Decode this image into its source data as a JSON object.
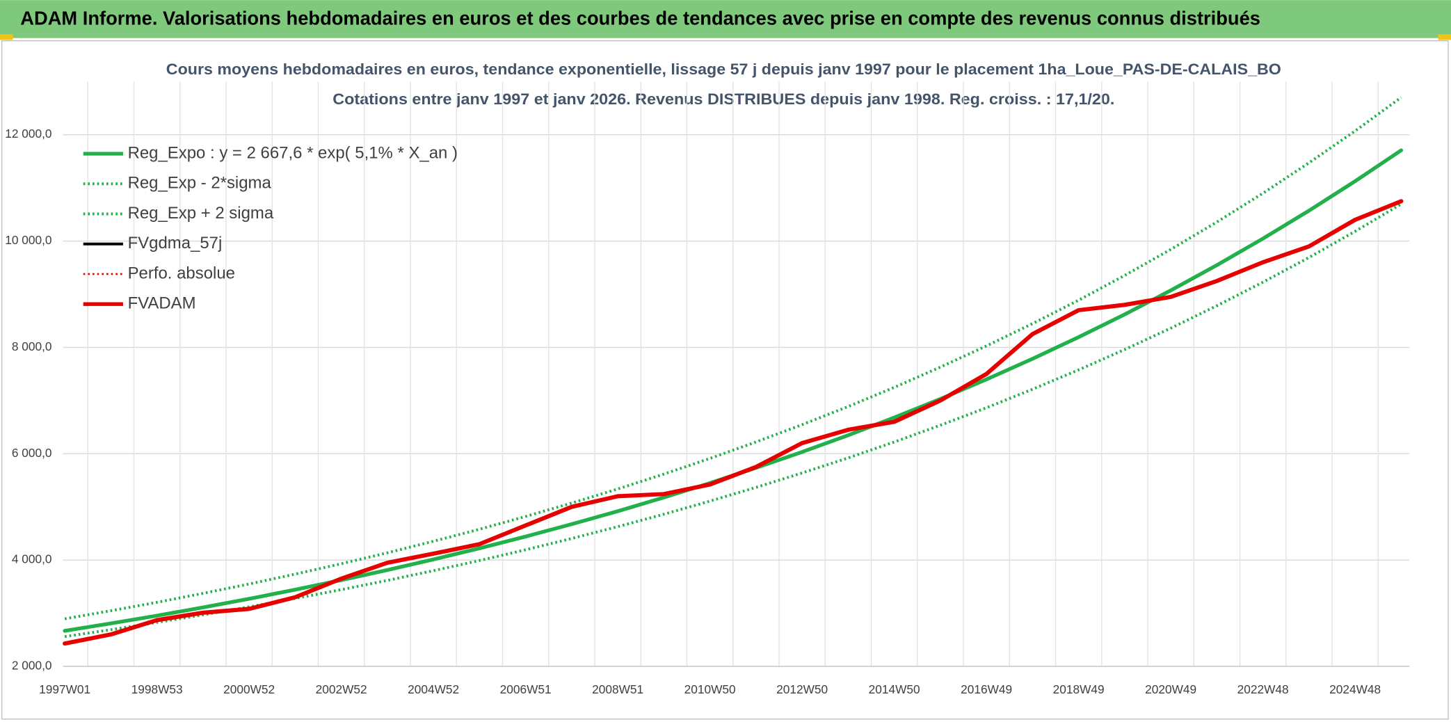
{
  "header": {
    "title": "ADAM Informe. Valorisations hebdomadaires en euros et des courbes de tendances avec prise en compte des revenus connus distribués"
  },
  "chart_data": {
    "type": "line",
    "title": "Cours moyens hebdomadaires en euros, tendance exponentielle, lissage 57 j depuis janv 1997 pour le placement 1ha_Loue_PAS-DE-CALAIS_BO",
    "subtitle": "Cotations entre janv 1997 et janv 2026. Revenus DISTRIBUES depuis janv 1998. Reg. croiss. : 17,1/20.",
    "categories": [
      "1997W01",
      null,
      "1998W53",
      null,
      "2000W52",
      null,
      "2002W52",
      null,
      "2004W52",
      null,
      "2006W51",
      null,
      "2008W51",
      null,
      "2010W50",
      null,
      "2012W50",
      null,
      "2014W50",
      null,
      "2016W49",
      null,
      "2018W49",
      null,
      "2020W49",
      null,
      "2022W48",
      null,
      "2024W48",
      null
    ],
    "ylim": [
      2000,
      13000
    ],
    "yticks": [
      {
        "value": 2000,
        "label": "2 000,0"
      },
      {
        "value": 4000,
        "label": "4 000,0"
      },
      {
        "value": 6000,
        "label": "6 000,0"
      },
      {
        "value": 8000,
        "label": "8 000,0"
      },
      {
        "value": 10000,
        "label": "10 000,0"
      },
      {
        "value": 12000,
        "label": "12 000,0"
      }
    ],
    "grid": true,
    "legend": "upper left",
    "series": [
      {
        "name": "Reg_Expo : y = 2 667,6 * exp( 5,1% *  X_an )",
        "color": "#22b04b",
        "style": "solid",
        "width": 4,
        "values": [
          2668,
          2807,
          2954,
          3109,
          3271,
          3443,
          3623,
          3812,
          4012,
          4221,
          4442,
          4675,
          4919,
          5177,
          5448,
          5733,
          6033,
          6348,
          6680,
          7030,
          7398,
          7785,
          8192,
          8621,
          9072,
          9547,
          10046,
          10572,
          11125,
          11707
        ]
      },
      {
        "name": "Reg_Exp - 2*sigma",
        "color": "#22b04b",
        "style": "dotted",
        "width": 3,
        "values": [
          2561,
          2690,
          2826,
          2970,
          3119,
          3278,
          3443,
          3617,
          3800,
          3991,
          4193,
          4406,
          4628,
          4862,
          5108,
          5366,
          5637,
          5921,
          6220,
          6535,
          6865,
          7212,
          7576,
          7959,
          8361,
          8783,
          9226,
          9692,
          10182,
          10695
        ]
      },
      {
        "name": "Reg_Exp + 2 sigma",
        "color": "#22b04b",
        "style": "dotted",
        "width": 3,
        "values": [
          2894,
          3046,
          3205,
          3373,
          3549,
          3736,
          3931,
          4136,
          4353,
          4580,
          4820,
          5072,
          5337,
          5617,
          5911,
          6220,
          6546,
          6888,
          7248,
          7628,
          8027,
          8447,
          8888,
          9354,
          9843,
          10358,
          10900,
          11471,
          12071,
          12702
        ]
      },
      {
        "name": "FVgdma_57j",
        "color": "#000000",
        "style": "solid",
        "width": 3,
        "values": [
          2430,
          2600,
          2870,
          3010,
          3080,
          3300,
          3650,
          3950,
          4120,
          4300,
          4650,
          5000,
          5200,
          5240,
          5420,
          5750,
          6200,
          6450,
          6600,
          7000,
          7500,
          8250,
          8700,
          8800,
          8950,
          9250,
          9600,
          9900,
          10400,
          10750
        ]
      },
      {
        "name": "Perfo. absolue",
        "color": "#e60000",
        "style": "dotted",
        "width": 2,
        "values": [
          2430,
          2600,
          2870,
          3010,
          3080,
          3300,
          3650,
          3950,
          4120,
          4300,
          4650,
          5000,
          5200,
          5240,
          5420,
          5750,
          6200,
          6450,
          6600,
          7000,
          7500,
          8250,
          8700,
          8800,
          8950,
          9250,
          9600,
          9900,
          10400,
          10750
        ]
      },
      {
        "name": "FVADAM",
        "color": "#e60000",
        "style": "solid",
        "width": 4.5,
        "values": [
          2430,
          2600,
          2870,
          3010,
          3080,
          3300,
          3650,
          3950,
          4120,
          4300,
          4650,
          5000,
          5200,
          5240,
          5420,
          5750,
          6200,
          6450,
          6600,
          7000,
          7500,
          8250,
          8700,
          8800,
          8950,
          9250,
          9600,
          9900,
          10400,
          10750
        ]
      }
    ]
  }
}
